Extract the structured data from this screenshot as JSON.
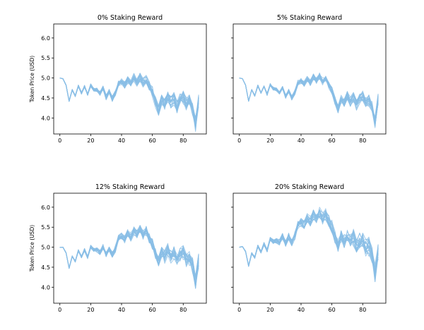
{
  "chart_data": {
    "type": "line",
    "series_color": "#88bde6",
    "series_count": 20,
    "x_ticks": [
      "0",
      "20",
      "40",
      "60",
      "80"
    ],
    "y_ticks": [
      "4.0",
      "4.5",
      "5.0",
      "5.5",
      "6.0"
    ],
    "xlim": [
      -4,
      95
    ],
    "ylim": [
      3.6,
      6.35
    ],
    "ylabel": "Token Price (USD)",
    "shared_y": true,
    "grid": false,
    "base_x": [
      0,
      2,
      4,
      6,
      8,
      10,
      12,
      14,
      16,
      18,
      20,
      22,
      24,
      26,
      28,
      30,
      32,
      34,
      36,
      38,
      40,
      42,
      44,
      46,
      48,
      50,
      52,
      54,
      56,
      58,
      60,
      62,
      64,
      66,
      68,
      70,
      72,
      74,
      76,
      78,
      80,
      82,
      84,
      86,
      88,
      90
    ],
    "base_y": [
      5.0,
      4.98,
      4.82,
      4.42,
      4.7,
      4.55,
      4.8,
      4.62,
      4.78,
      4.58,
      4.82,
      4.72,
      4.7,
      4.62,
      4.74,
      4.52,
      4.66,
      4.48,
      4.62,
      4.86,
      4.9,
      4.82,
      4.95,
      4.86,
      5.0,
      4.9,
      5.02,
      4.88,
      4.96,
      4.8,
      4.66,
      4.4,
      4.2,
      4.45,
      4.35,
      4.52,
      4.38,
      4.48,
      4.3,
      4.45,
      4.52,
      4.36,
      4.42,
      4.25,
      3.85,
      4.45
    ],
    "panels": [
      {
        "title": "0% Staking Reward",
        "drift": 0.0,
        "spread": 0.32
      },
      {
        "title": "5% Staking Reward",
        "drift": 0.03,
        "spread": 0.22
      },
      {
        "title": "12% Staking Reward",
        "drift": 0.5,
        "spread": 0.35
      },
      {
        "title": "20% Staking Reward",
        "drift": 1.0,
        "spread": 0.42
      }
    ]
  }
}
